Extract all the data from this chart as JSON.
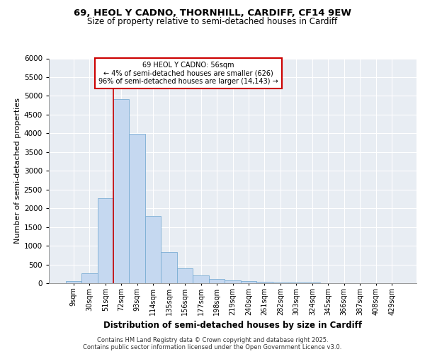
{
  "title1": "69, HEOL Y CADNO, THORNHILL, CARDIFF, CF14 9EW",
  "title2": "Size of property relative to semi-detached houses in Cardiff",
  "xlabel": "Distribution of semi-detached houses by size in Cardiff",
  "ylabel": "Number of semi-detached properties",
  "categories": [
    "9sqm",
    "30sqm",
    "51sqm",
    "72sqm",
    "93sqm",
    "114sqm",
    "135sqm",
    "156sqm",
    "177sqm",
    "198sqm",
    "219sqm",
    "240sqm",
    "261sqm",
    "282sqm",
    "303sqm",
    "324sqm",
    "345sqm",
    "366sqm",
    "387sqm",
    "408sqm",
    "429sqm"
  ],
  "values": [
    50,
    265,
    2260,
    4920,
    3980,
    1790,
    840,
    390,
    200,
    115,
    80,
    55,
    35,
    20,
    15,
    10,
    8,
    5,
    3,
    2,
    1
  ],
  "bar_color": "#c5d8f0",
  "bar_edge_color": "#7aadd4",
  "red_line_x": 2.5,
  "annotation_title": "69 HEOL Y CADNO: 56sqm",
  "annotation_line1": "← 4% of semi-detached houses are smaller (626)",
  "annotation_line2": "96% of semi-detached houses are larger (14,143) →",
  "annotation_box_color": "#ffffff",
  "annotation_box_edge": "#cc0000",
  "ylim": [
    0,
    6000
  ],
  "yticks": [
    0,
    500,
    1000,
    1500,
    2000,
    2500,
    3000,
    3500,
    4000,
    4500,
    5000,
    5500,
    6000
  ],
  "bg_color": "#e8edf3",
  "grid_color": "#ffffff",
  "footer1": "Contains HM Land Registry data © Crown copyright and database right 2025.",
  "footer2": "Contains public sector information licensed under the Open Government Licence v3.0."
}
